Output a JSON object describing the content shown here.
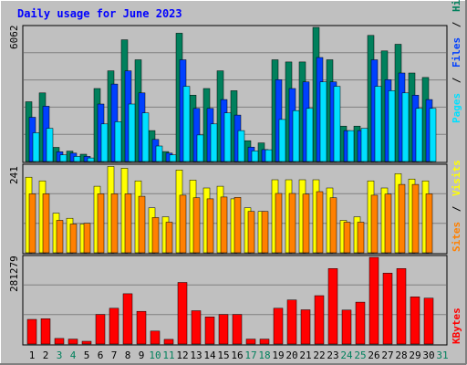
{
  "page": {
    "title": "Daily usage for June 2023"
  },
  "colors": {
    "background": "#c0c0c0",
    "title": "#0000ff",
    "hits": "#00805c",
    "files": "#0040ff",
    "pages": "#00e0ff",
    "visits": "#ffff00",
    "sites": "#ff8000",
    "kbytes": "#ff0000",
    "weekday_label": "#000000",
    "weekend_label": "#00805c",
    "grid": "#808080"
  },
  "chart_data": [
    {
      "type": "bar",
      "panel": "hits-files-pages",
      "max_label": "6062",
      "ylim": [
        0,
        6062
      ],
      "legend": {
        "hits": "Hits",
        "files": "Files",
        "pages": "Pages",
        "sep": "/"
      },
      "categories": [
        "1",
        "2",
        "3",
        "4",
        "5",
        "6",
        "7",
        "8",
        "9",
        "10",
        "11",
        "12",
        "13",
        "14",
        "15",
        "16",
        "17",
        "18",
        "19",
        "20",
        "21",
        "22",
        "23",
        "24",
        "25",
        "26",
        "27",
        "28",
        "29",
        "30",
        "31"
      ],
      "series": [
        {
          "name": "Hits",
          "values": [
            2700,
            3100,
            640,
            470,
            330,
            3300,
            4100,
            5500,
            4600,
            1400,
            450,
            5800,
            3000,
            3300,
            4100,
            3200,
            940,
            840,
            4600,
            4500,
            4500,
            6062,
            4600,
            1600,
            1600,
            5700,
            5000,
            5300,
            4000,
            3800,
            0
          ]
        },
        {
          "name": "Files",
          "values": [
            2000,
            2500,
            440,
            380,
            230,
            2600,
            3500,
            4100,
            3100,
            1000,
            380,
            4600,
            2400,
            2400,
            2800,
            2100,
            650,
            540,
            3700,
            3300,
            3600,
            4700,
            3600,
            1400,
            1400,
            4600,
            3700,
            4000,
            3000,
            2800,
            0
          ]
        },
        {
          "name": "Pages",
          "values": [
            1300,
            1500,
            300,
            230,
            160,
            1700,
            1800,
            2600,
            2200,
            700,
            300,
            3400,
            1200,
            1700,
            2200,
            1400,
            480,
            530,
            1900,
            2300,
            2400,
            3600,
            3400,
            1400,
            1500,
            3400,
            3200,
            3100,
            2400,
            2400,
            0
          ]
        }
      ]
    },
    {
      "type": "bar",
      "panel": "visits-sites",
      "max_label": "241",
      "ylim": [
        0,
        241
      ],
      "legend": {
        "visits": "Visits",
        "sites": "Sites",
        "sep": "/"
      },
      "categories": [
        "1",
        "2",
        "3",
        "4",
        "5",
        "6",
        "7",
        "8",
        "9",
        "10",
        "11",
        "12",
        "13",
        "14",
        "15",
        "16",
        "17",
        "18",
        "19",
        "20",
        "21",
        "22",
        "23",
        "24",
        "25",
        "26",
        "27",
        "28",
        "29",
        "30",
        "31"
      ],
      "series": [
        {
          "name": "Visits",
          "values": [
            210,
            200,
            110,
            96,
            80,
            185,
            240,
            235,
            200,
            125,
            100,
            230,
            202,
            180,
            185,
            150,
            125,
            115,
            203,
            203,
            203,
            203,
            180,
            90,
            100,
            200,
            180,
            220,
            205,
            200,
            0
          ]
        },
        {
          "name": "Sites",
          "values": [
            164,
            164,
            90,
            80,
            82,
            164,
            164,
            164,
            157,
            98,
            85,
            160,
            153,
            150,
            155,
            154,
            115,
            115,
            165,
            165,
            163,
            170,
            153,
            85,
            85,
            160,
            163,
            190,
            190,
            164,
            0
          ]
        }
      ]
    },
    {
      "type": "bar",
      "panel": "kbytes",
      "max_label": "281279",
      "ylim": [
        0,
        281279
      ],
      "legend": {
        "kbytes": "KBytes"
      },
      "categories": [
        "1",
        "2",
        "3",
        "4",
        "5",
        "6",
        "7",
        "8",
        "9",
        "10",
        "11",
        "12",
        "13",
        "14",
        "15",
        "16",
        "17",
        "18",
        "19",
        "20",
        "21",
        "22",
        "23",
        "24",
        "25",
        "26",
        "27",
        "28",
        "29",
        "30",
        "31"
      ],
      "series": [
        {
          "name": "KBytes",
          "values": [
            80000,
            82000,
            18000,
            16000,
            9000,
            96000,
            116000,
            163000,
            106000,
            42000,
            15000,
            200000,
            108000,
            88000,
            96000,
            96000,
            16000,
            16000,
            116000,
            143000,
            111000,
            157000,
            245000,
            110000,
            136000,
            281279,
            230000,
            245000,
            153000,
            149000,
            0
          ]
        }
      ]
    }
  ],
  "x_labels": {
    "days": [
      "1",
      "2",
      "3",
      "4",
      "5",
      "6",
      "7",
      "8",
      "9",
      "10",
      "11",
      "12",
      "13",
      "14",
      "15",
      "16",
      "17",
      "18",
      "19",
      "20",
      "21",
      "22",
      "23",
      "24",
      "25",
      "26",
      "27",
      "28",
      "29",
      "30",
      "31"
    ],
    "weekend_days": [
      "3",
      "4",
      "10",
      "11",
      "17",
      "18",
      "24",
      "25",
      "31"
    ]
  }
}
